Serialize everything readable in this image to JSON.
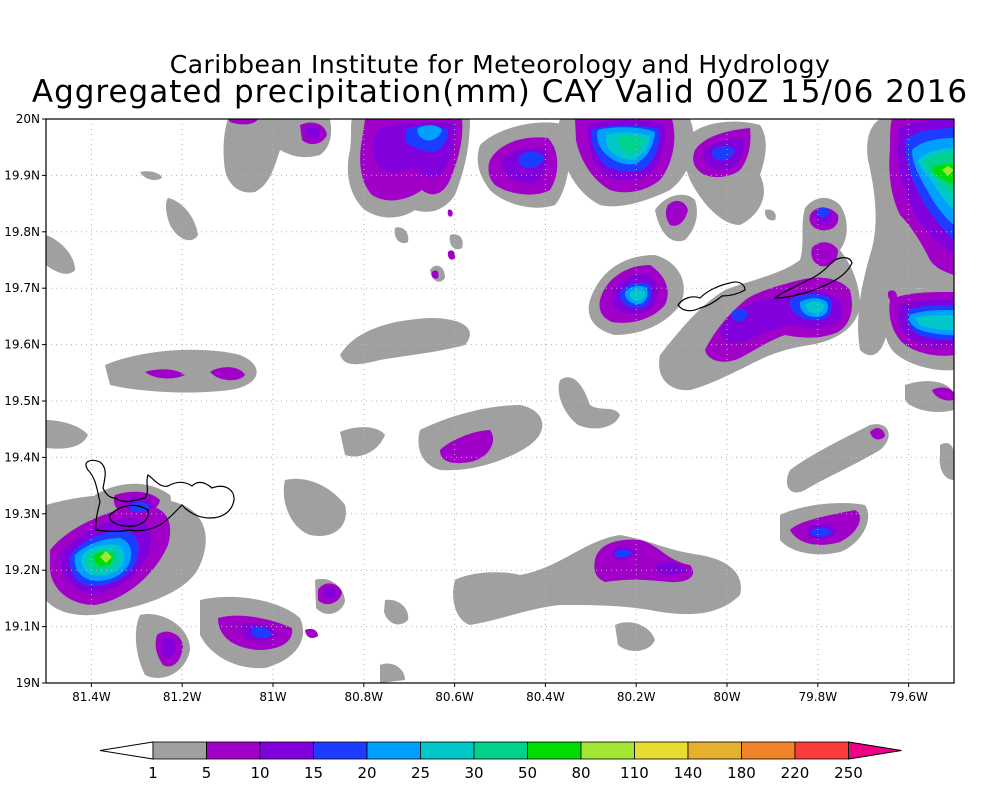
{
  "title_line1": "Caribbean Institute for Meteorology and Hydrology",
  "title_line2": "Aggregated precipitation(mm) CAY Valid 00Z 15/06 2016",
  "map": {
    "lon_range": [
      -81.5,
      -79.5
    ],
    "lat_range": [
      19.0,
      20.0
    ],
    "grid": true,
    "lon_ticks": [
      "81.4W",
      "81.2W",
      "81W",
      "80.8W",
      "80.6W",
      "80.4W",
      "80.2W",
      "80W",
      "79.8W",
      "79.6W"
    ],
    "lon_tick_values": [
      -81.4,
      -81.2,
      -81.0,
      -80.8,
      -80.6,
      -80.4,
      -80.2,
      -80.0,
      -79.8,
      -79.6
    ],
    "lat_ticks": [
      "19N",
      "19.1N",
      "19.2N",
      "19.3N",
      "19.4N",
      "19.5N",
      "19.6N",
      "19.7N",
      "19.8N",
      "19.9N",
      "20N"
    ],
    "lat_tick_values": [
      19.0,
      19.1,
      19.2,
      19.3,
      19.4,
      19.5,
      19.6,
      19.7,
      19.8,
      19.9,
      20.0
    ]
  },
  "colorbar": {
    "labels": [
      "1",
      "5",
      "10",
      "15",
      "20",
      "25",
      "30",
      "50",
      "80",
      "110",
      "140",
      "180",
      "220",
      "250"
    ],
    "colors": [
      "#a0a0a0",
      "#a000c8",
      "#8200dc",
      "#1e3cff",
      "#00a0ff",
      "#00c8c8",
      "#00d28c",
      "#00dc00",
      "#a0e632",
      "#e6dc32",
      "#e6af2d",
      "#f08228",
      "#fa3c3c"
    ],
    "under_color": "#ffffff",
    "over_color": "#f00082"
  },
  "chart_data": {
    "type": "heatmap",
    "variable": "Aggregated precipitation(mm)",
    "cells": [
      {
        "lon": -81.33,
        "lat": 19.22,
        "mm": 80
      },
      {
        "lon": -81.3,
        "lat": 19.24,
        "mm": 30
      },
      {
        "lon": -81.0,
        "lat": 19.08,
        "mm": 20
      },
      {
        "lon": -80.87,
        "lat": 19.15,
        "mm": 10
      },
      {
        "lon": -81.16,
        "lat": 19.05,
        "mm": 10
      },
      {
        "lon": -81.14,
        "lat": 19.55,
        "mm": 5
      },
      {
        "lon": -81.07,
        "lat": 19.55,
        "mm": 5
      },
      {
        "lon": -80.56,
        "lat": 19.4,
        "mm": 10
      },
      {
        "lon": -80.22,
        "lat": 19.22,
        "mm": 20
      },
      {
        "lon": -80.13,
        "lat": 19.2,
        "mm": 10
      },
      {
        "lon": -79.79,
        "lat": 19.26,
        "mm": 20
      },
      {
        "lon": -79.72,
        "lat": 19.44,
        "mm": 5
      },
      {
        "lon": -80.2,
        "lat": 19.69,
        "mm": 30
      },
      {
        "lon": -80.04,
        "lat": 19.95,
        "mm": 15
      },
      {
        "lon": -79.95,
        "lat": 19.65,
        "mm": 15
      },
      {
        "lon": -79.8,
        "lat": 19.68,
        "mm": 30
      },
      {
        "lon": -79.8,
        "lat": 19.83,
        "mm": 15
      },
      {
        "lon": -79.56,
        "lat": 19.65,
        "mm": 30
      },
      {
        "lon": -79.53,
        "lat": 19.91,
        "mm": 50
      },
      {
        "lon": -80.25,
        "lat": 19.95,
        "mm": 30
      },
      {
        "lon": -80.42,
        "lat": 19.93,
        "mm": 20
      },
      {
        "lon": -80.68,
        "lat": 19.95,
        "mm": 20
      },
      {
        "lon": -80.88,
        "lat": 19.98,
        "mm": 10
      }
    ]
  }
}
